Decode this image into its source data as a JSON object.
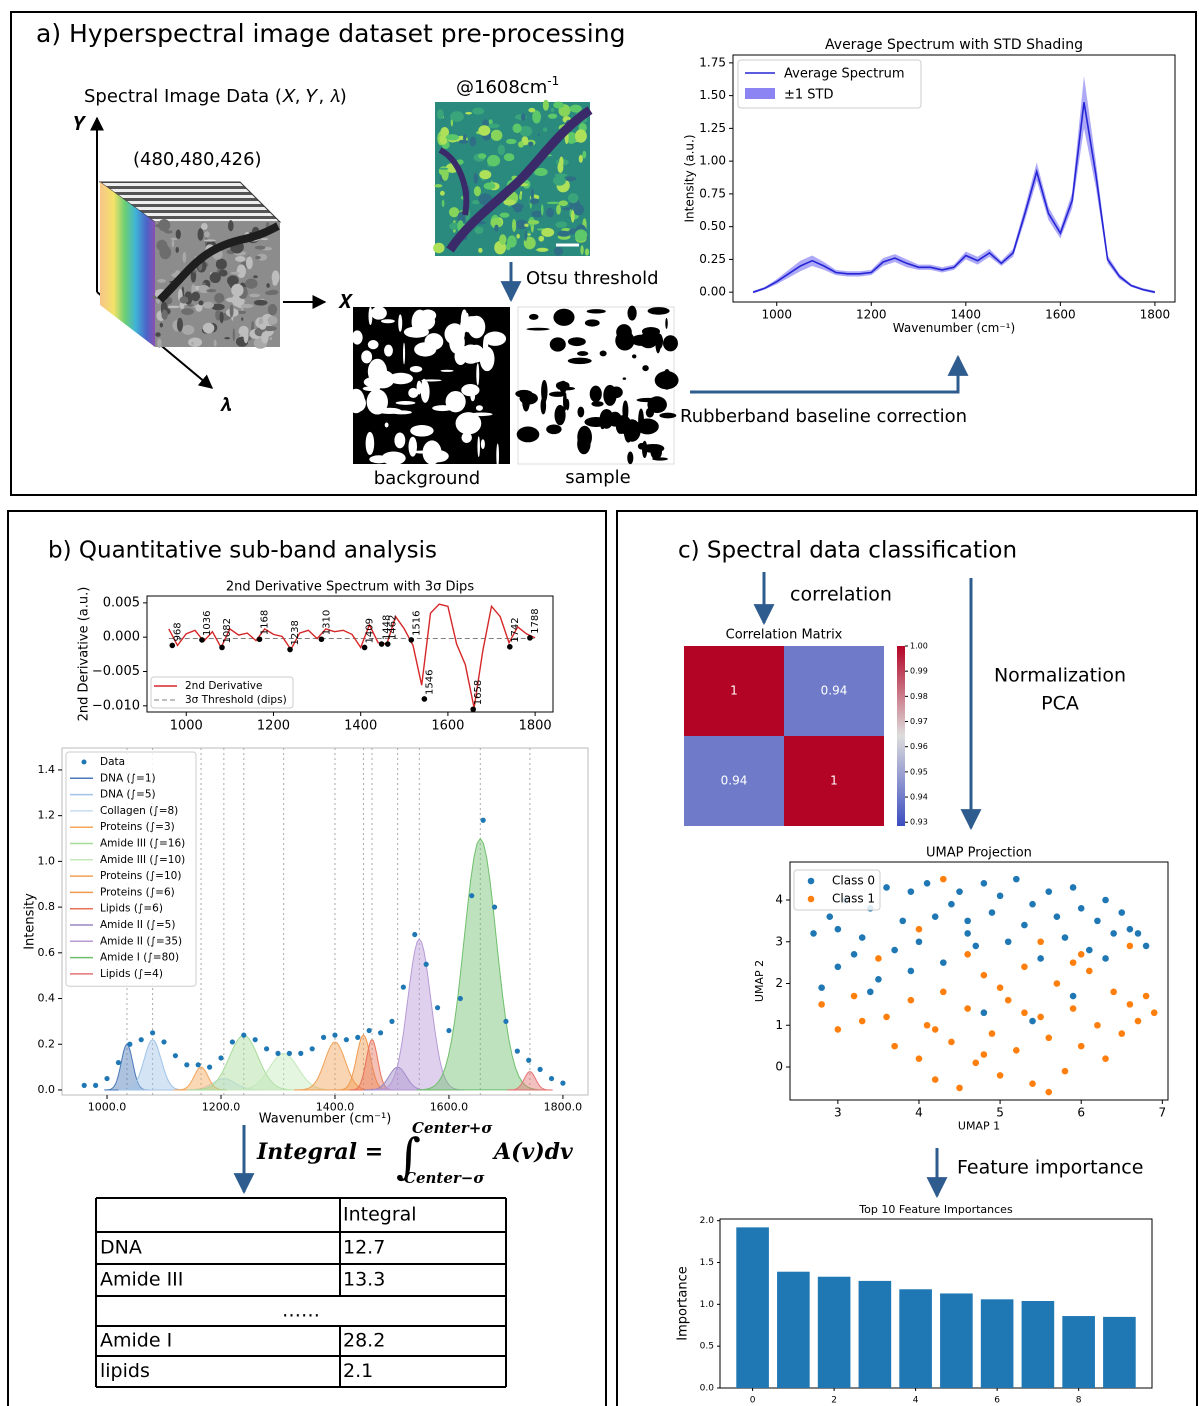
{
  "panel_a": {
    "title": "a) Hyperspectral image dataset pre-processing",
    "cube_label": "Spectral Image Data (𝑋, 𝑌, 𝜆)",
    "dims": "(480,480,426)",
    "axis_y": "𝒀",
    "axis_x": "𝑿",
    "axis_lambda": "𝝀",
    "band": "@1608cm",
    "band_sup": "-1",
    "otsu": "Otsu threshold",
    "background": "background",
    "sample": "sample",
    "baseline": "Rubberband baseline correction"
  },
  "panel_b": {
    "title": "b) Quantitative sub-band analysis",
    "formula": {
      "lhs": "Integral =",
      "sign": "∫",
      "upper": "Center+σ",
      "lower": "Center−σ",
      "integrand": "A(𝒗)𝒅𝒗"
    },
    "table": {
      "header": "Integral",
      "rows": [
        [
          "DNA",
          12.7
        ],
        [
          "Amide III",
          13.3
        ]
      ],
      "ellipsis": "……",
      "rows_after": [
        [
          "Amide I",
          28.2
        ],
        [
          "lipids",
          2.1
        ]
      ]
    }
  },
  "panel_c": {
    "title": "c) Spectral data classification",
    "correlation": "correlation",
    "normalization": "Normalization",
    "pca": "PCA",
    "feature": "Feature importance"
  },
  "chart_data": [
    {
      "type": "line",
      "title": "Average Spectrum with STD Shading",
      "xlabel": "Wavenumber (cm⁻¹)",
      "ylabel": "Intensity (a.u.)",
      "x": [
        950,
        975,
        1000,
        1025,
        1050,
        1075,
        1100,
        1125,
        1150,
        1175,
        1200,
        1225,
        1250,
        1275,
        1300,
        1325,
        1350,
        1375,
        1400,
        1425,
        1450,
        1475,
        1500,
        1525,
        1550,
        1575,
        1600,
        1625,
        1650,
        1675,
        1700,
        1725,
        1750,
        1775,
        1800
      ],
      "series": [
        {
          "name": "Average Spectrum",
          "color": "#2525d6",
          "values": [
            0,
            0.03,
            0.08,
            0.14,
            0.2,
            0.24,
            0.2,
            0.15,
            0.14,
            0.14,
            0.15,
            0.23,
            0.26,
            0.22,
            0.19,
            0.19,
            0.17,
            0.19,
            0.28,
            0.24,
            0.3,
            0.22,
            0.3,
            0.6,
            0.92,
            0.6,
            0.45,
            0.7,
            1.45,
            0.9,
            0.25,
            0.12,
            0.05,
            0.02,
            0
          ]
        },
        {
          "name": "±1 STD",
          "kind": "std_band",
          "color": "#8c84f2",
          "values": [
            0.01,
            0.01,
            0.02,
            0.03,
            0.04,
            0.04,
            0.03,
            0.02,
            0.02,
            0.02,
            0.02,
            0.03,
            0.03,
            0.03,
            0.02,
            0.02,
            0.02,
            0.02,
            0.03,
            0.03,
            0.03,
            0.02,
            0.03,
            0.05,
            0.07,
            0.05,
            0.04,
            0.06,
            0.2,
            0.1,
            0.03,
            0.02,
            0.01,
            0.01,
            0.01
          ]
        }
      ],
      "xlim": [
        907.5,
        1842.5
      ],
      "ylim": [
        -0.075,
        1.81
      ],
      "xticks": [
        1000,
        1200,
        1400,
        1600,
        1800
      ],
      "yticks": [
        {
          "value": 0,
          "label": "0.00"
        },
        0.25,
        {
          "value": 0.5,
          "label": "0.50"
        },
        0.75,
        {
          "value": 1,
          "label": "1.00"
        },
        1.25,
        {
          "value": 1.5,
          "label": "1.50"
        },
        1.75
      ],
      "legend": "upper left"
    },
    {
      "type": "line",
      "title": "2nd Derivative Spectrum with 3σ Dips",
      "ylabel": "2nd Derivative (a.u.)",
      "x": [
        960,
        980,
        1000,
        1020,
        1040,
        1060,
        1080,
        1100,
        1120,
        1140,
        1160,
        1180,
        1200,
        1220,
        1240,
        1260,
        1280,
        1300,
        1320,
        1340,
        1360,
        1380,
        1400,
        1420,
        1440,
        1460,
        1480,
        1500,
        1520,
        1540,
        1560,
        1580,
        1600,
        1620,
        1640,
        1660,
        1680,
        1700,
        1720,
        1740,
        1760,
        1780,
        1800
      ],
      "series": [
        {
          "name": "2nd Derivative",
          "color": "#d62728",
          "values": [
            0.0012,
            -0.0012,
            0.0005,
            0.001,
            -0.0006,
            0.0008,
            -0.0015,
            0.0012,
            0.0003,
            0.0006,
            -0.0005,
            0.0012,
            0.0004,
            0.0001,
            -0.0018,
            0.0006,
            0.001,
            -0.0002,
            0.0012,
            0.0008,
            0.001,
            0.0004,
            -0.0015,
            0.0018,
            -0.0008,
            -0.001,
            0.003,
            0.0012,
            -0.0012,
            -0.007,
            0.0035,
            0.0048,
            0.0045,
            -0.001,
            -0.004,
            -0.0103,
            -0.002,
            0.0045,
            0.003,
            -0.0008,
            0.0015,
            0.0005,
            -0.0001
          ]
        }
      ],
      "threshold": {
        "name": "3σ Threshold (dips)",
        "value": -0.0002,
        "color": "#808080"
      },
      "dips": {
        "x": [
          968,
          1036,
          1082,
          1168,
          1238,
          1310,
          1409,
          1448,
          1462,
          1516,
          1546,
          1658,
          1742,
          1788
        ],
        "values": [
          -0.0012,
          -0.0004,
          -0.0015,
          -0.0003,
          -0.0018,
          -0.0003,
          -0.0015,
          -0.001,
          -0.001,
          -0.0004,
          -0.009,
          -0.0105,
          -0.0014,
          -0.0001
        ],
        "color": "#000000"
      },
      "xlim": [
        910,
        1841
      ],
      "ylim": [
        -0.0109,
        0.006
      ],
      "xticks": [
        1000,
        1200,
        1400,
        1600,
        1800
      ],
      "yticks": [
        0.005,
        {
          "value": 0,
          "label": "0.000"
        },
        {
          "value": -0.005,
          "label": "−0.005"
        },
        {
          "value": -0.01,
          "label": "−0.010"
        }
      ],
      "legend": "lower left"
    },
    {
      "type": "peak_fit",
      "xlabel": "Wavenumber (cm⁻¹)",
      "ylabel": "Intensity",
      "x": [
        960,
        980,
        1000,
        1020,
        1040,
        1060,
        1080,
        1100,
        1120,
        1140,
        1160,
        1180,
        1200,
        1220,
        1240,
        1260,
        1280,
        1300,
        1320,
        1340,
        1360,
        1380,
        1400,
        1420,
        1440,
        1460,
        1480,
        1500,
        1520,
        1540,
        1560,
        1580,
        1600,
        1620,
        1640,
        1660,
        1680,
        1700,
        1720,
        1740,
        1760,
        1780,
        1800
      ],
      "series": [
        {
          "name": "Data",
          "color": "#1f77b4",
          "values": [
            0.02,
            0.02,
            0.05,
            0.12,
            0.2,
            0.22,
            0.25,
            0.21,
            0.15,
            0.11,
            0.11,
            0.1,
            0.14,
            0.21,
            0.24,
            0.22,
            0.18,
            0.16,
            0.16,
            0.16,
            0.18,
            0.23,
            0.24,
            0.22,
            0.23,
            0.26,
            0.25,
            0.3,
            0.45,
            0.68,
            0.55,
            0.36,
            0.26,
            0.4,
            0.85,
            1.18,
            0.8,
            0.3,
            0.17,
            0.13,
            0.09,
            0.05,
            0.03
          ]
        }
      ],
      "components": [
        {
          "name": "DNA (∫=1)",
          "color": "#4a78b8",
          "center": 1035,
          "amplitude": 0.2,
          "sigma": 10
        },
        {
          "name": "DNA (∫=5)",
          "color": "#9fc3e7",
          "center": 1080,
          "amplitude": 0.22,
          "sigma": 15
        },
        {
          "name": "Collagen (∫=8)",
          "color": "#c6dcf0",
          "center": 1205,
          "amplitude": 0.05,
          "sigma": 20
        },
        {
          "name": "Proteins (∫=3)",
          "color": "#f5a65b",
          "center": 1165,
          "amplitude": 0.1,
          "sigma": 12
        },
        {
          "name": "Amide III (∫=16)",
          "color": "#a8dc9a",
          "center": 1240,
          "amplitude": 0.24,
          "sigma": 25
        },
        {
          "name": "Amide III (∫=10)",
          "color": "#c4e8ba",
          "center": 1310,
          "amplitude": 0.16,
          "sigma": 25
        },
        {
          "name": "Proteins (∫=10)",
          "color": "#f2a157",
          "center": 1400,
          "amplitude": 0.21,
          "sigma": 18
        },
        {
          "name": "Proteins (∫=6)",
          "color": "#f09a4e",
          "center": 1450,
          "amplitude": 0.24,
          "sigma": 12
        },
        {
          "name": "Lipids (∫=6)",
          "color": "#e8735a",
          "center": 1465,
          "amplitude": 0.22,
          "sigma": 10
        },
        {
          "name": "Amide II (∫=5)",
          "color": "#9a86c4",
          "center": 1510,
          "amplitude": 0.1,
          "sigma": 15
        },
        {
          "name": "Amide II (∫=35)",
          "color": "#b79ad6",
          "center": 1548,
          "amplitude": 0.66,
          "sigma": 20
        },
        {
          "name": "Amide I (∫=80)",
          "color": "#6fbf6c",
          "center": 1655,
          "amplitude": 1.1,
          "sigma": 28
        },
        {
          "name": "Lipids (∫=4)",
          "color": "#e57373",
          "center": 1742,
          "amplitude": 0.08,
          "sigma": 10
        }
      ],
      "xlim": [
        921,
        1844
      ],
      "ylim": [
        -0.022,
        1.496
      ],
      "xticks": [
        {
          "value": 1000,
          "label": "1000.0"
        },
        {
          "value": 1200,
          "label": "1200.0"
        },
        {
          "value": 1400,
          "label": "1400.0"
        },
        {
          "value": 1600,
          "label": "1600.0"
        },
        {
          "value": 1800,
          "label": "1800.0"
        }
      ],
      "yticks": [
        {
          "value": 0,
          "label": "0.0"
        },
        0.2,
        0.4,
        0.6,
        0.8,
        {
          "value": 1,
          "label": "1.0"
        },
        1.2,
        1.4
      ],
      "center_guides": true,
      "legend": "upper left"
    },
    {
      "type": "heatmap",
      "title": "Correlation Matrix",
      "values": [
        [
          1,
          0.94
        ],
        [
          0.94,
          1
        ]
      ],
      "colormap": "coolwarm",
      "clim": [
        0.9285,
        1.0
      ],
      "cticks": [
        {
          "value": 1,
          "label": "1.00"
        },
        0.99,
        0.98,
        0.97,
        0.96,
        0.95,
        0.94,
        0.93
      ]
    },
    {
      "type": "scatter",
      "title": "UMAP Projection",
      "xlabel": "UMAP 1",
      "ylabel": "UMAP 2",
      "series": [
        {
          "name": "Class 0",
          "color": "#1f77b4",
          "x": [
            2.7,
            2.9,
            3.1,
            3.0,
            3.3,
            3.4,
            3.2,
            3.6,
            3.5,
            3.8,
            3.9,
            3.7,
            4.0,
            4.1,
            4.2,
            4.3,
            4.4,
            4.5,
            4.6,
            4.7,
            4.8,
            4.9,
            5.0,
            5.1,
            5.2,
            5.3,
            5.4,
            5.5,
            5.6,
            5.7,
            5.8,
            5.9,
            6.0,
            6.1,
            6.2,
            6.3,
            6.4,
            6.5,
            6.6,
            6.7,
            6.8,
            3.4,
            2.8,
            4.8,
            5.4,
            4.6,
            3.9,
            5.9,
            6.3,
            3.0
          ],
          "values": [
            3.2,
            3.6,
            4.0,
            2.4,
            3.1,
            3.8,
            2.7,
            4.3,
            2.1,
            3.5,
            4.2,
            2.8,
            3.0,
            4.4,
            3.6,
            2.5,
            3.9,
            4.2,
            3.2,
            2.9,
            4.4,
            3.7,
            4.1,
            3.0,
            4.5,
            3.4,
            3.9,
            2.6,
            4.2,
            3.6,
            3.1,
            4.3,
            3.8,
            2.8,
            3.5,
            4.0,
            3.2,
            3.7,
            3.3,
            3.2,
            2.9,
            1.8,
            1.9,
            1.3,
            1.1,
            3.5,
            2.3,
            1.7,
            2.6,
            3.3
          ]
        },
        {
          "name": "Class 1",
          "color": "#ff7f0e",
          "x": [
            2.8,
            3.0,
            3.2,
            3.6,
            3.7,
            3.9,
            4.0,
            4.1,
            4.2,
            4.3,
            4.4,
            4.5,
            4.6,
            4.7,
            4.8,
            4.9,
            5.0,
            5.1,
            5.2,
            5.3,
            5.4,
            5.5,
            5.6,
            5.7,
            5.8,
            5.9,
            6.0,
            6.1,
            6.2,
            6.3,
            6.4,
            6.5,
            6.6,
            6.7,
            6.8,
            6.9,
            4.3,
            4.0,
            4.6,
            5.5,
            5.9,
            6.6,
            3.5,
            4.2,
            5.0,
            5.6,
            6.0,
            4.8,
            5.3,
            3.3
          ],
          "values": [
            1.5,
            0.9,
            1.7,
            1.2,
            0.5,
            1.6,
            0.2,
            1.0,
            -0.3,
            1.8,
            0.6,
            -0.5,
            1.4,
            0.1,
            2.2,
            0.8,
            -0.2,
            1.6,
            0.4,
            2.4,
            -0.4,
            1.2,
            0.7,
            2.0,
            -0.1,
            1.4,
            0.5,
            2.3,
            1.0,
            0.2,
            1.8,
            0.8,
            1.5,
            1.1,
            1.7,
            1.3,
            4.5,
            3.3,
            2.7,
            3.0,
            2.5,
            2.9,
            2.6,
            0.9,
            1.9,
            -0.6,
            2.7,
            0.3,
            1.3,
            1.1
          ]
        }
      ],
      "xlim": [
        2.41,
        7.07
      ],
      "ylim": [
        -0.79,
        4.91
      ],
      "xticks": [
        3,
        4,
        5,
        6,
        7
      ],
      "yticks": [
        0,
        1,
        2,
        3,
        4
      ],
      "legend": "upper left"
    },
    {
      "type": "bar",
      "title": "Top 10 Feature Importances",
      "ylabel": "Importance",
      "color": "#1f77b4",
      "categories": [
        "0",
        null,
        "2",
        null,
        "4",
        null,
        "6",
        null,
        "8",
        null
      ],
      "values": [
        1.92,
        1.39,
        1.33,
        1.28,
        1.18,
        1.13,
        1.06,
        1.04,
        0.86,
        0.85
      ],
      "ylim": [
        0,
        2.02
      ],
      "yticks": [
        {
          "value": 0,
          "label": "0.0"
        },
        0.5,
        {
          "value": 1,
          "label": "1.0"
        },
        1.5,
        {
          "value": 2,
          "label": "2.0"
        }
      ]
    }
  ]
}
